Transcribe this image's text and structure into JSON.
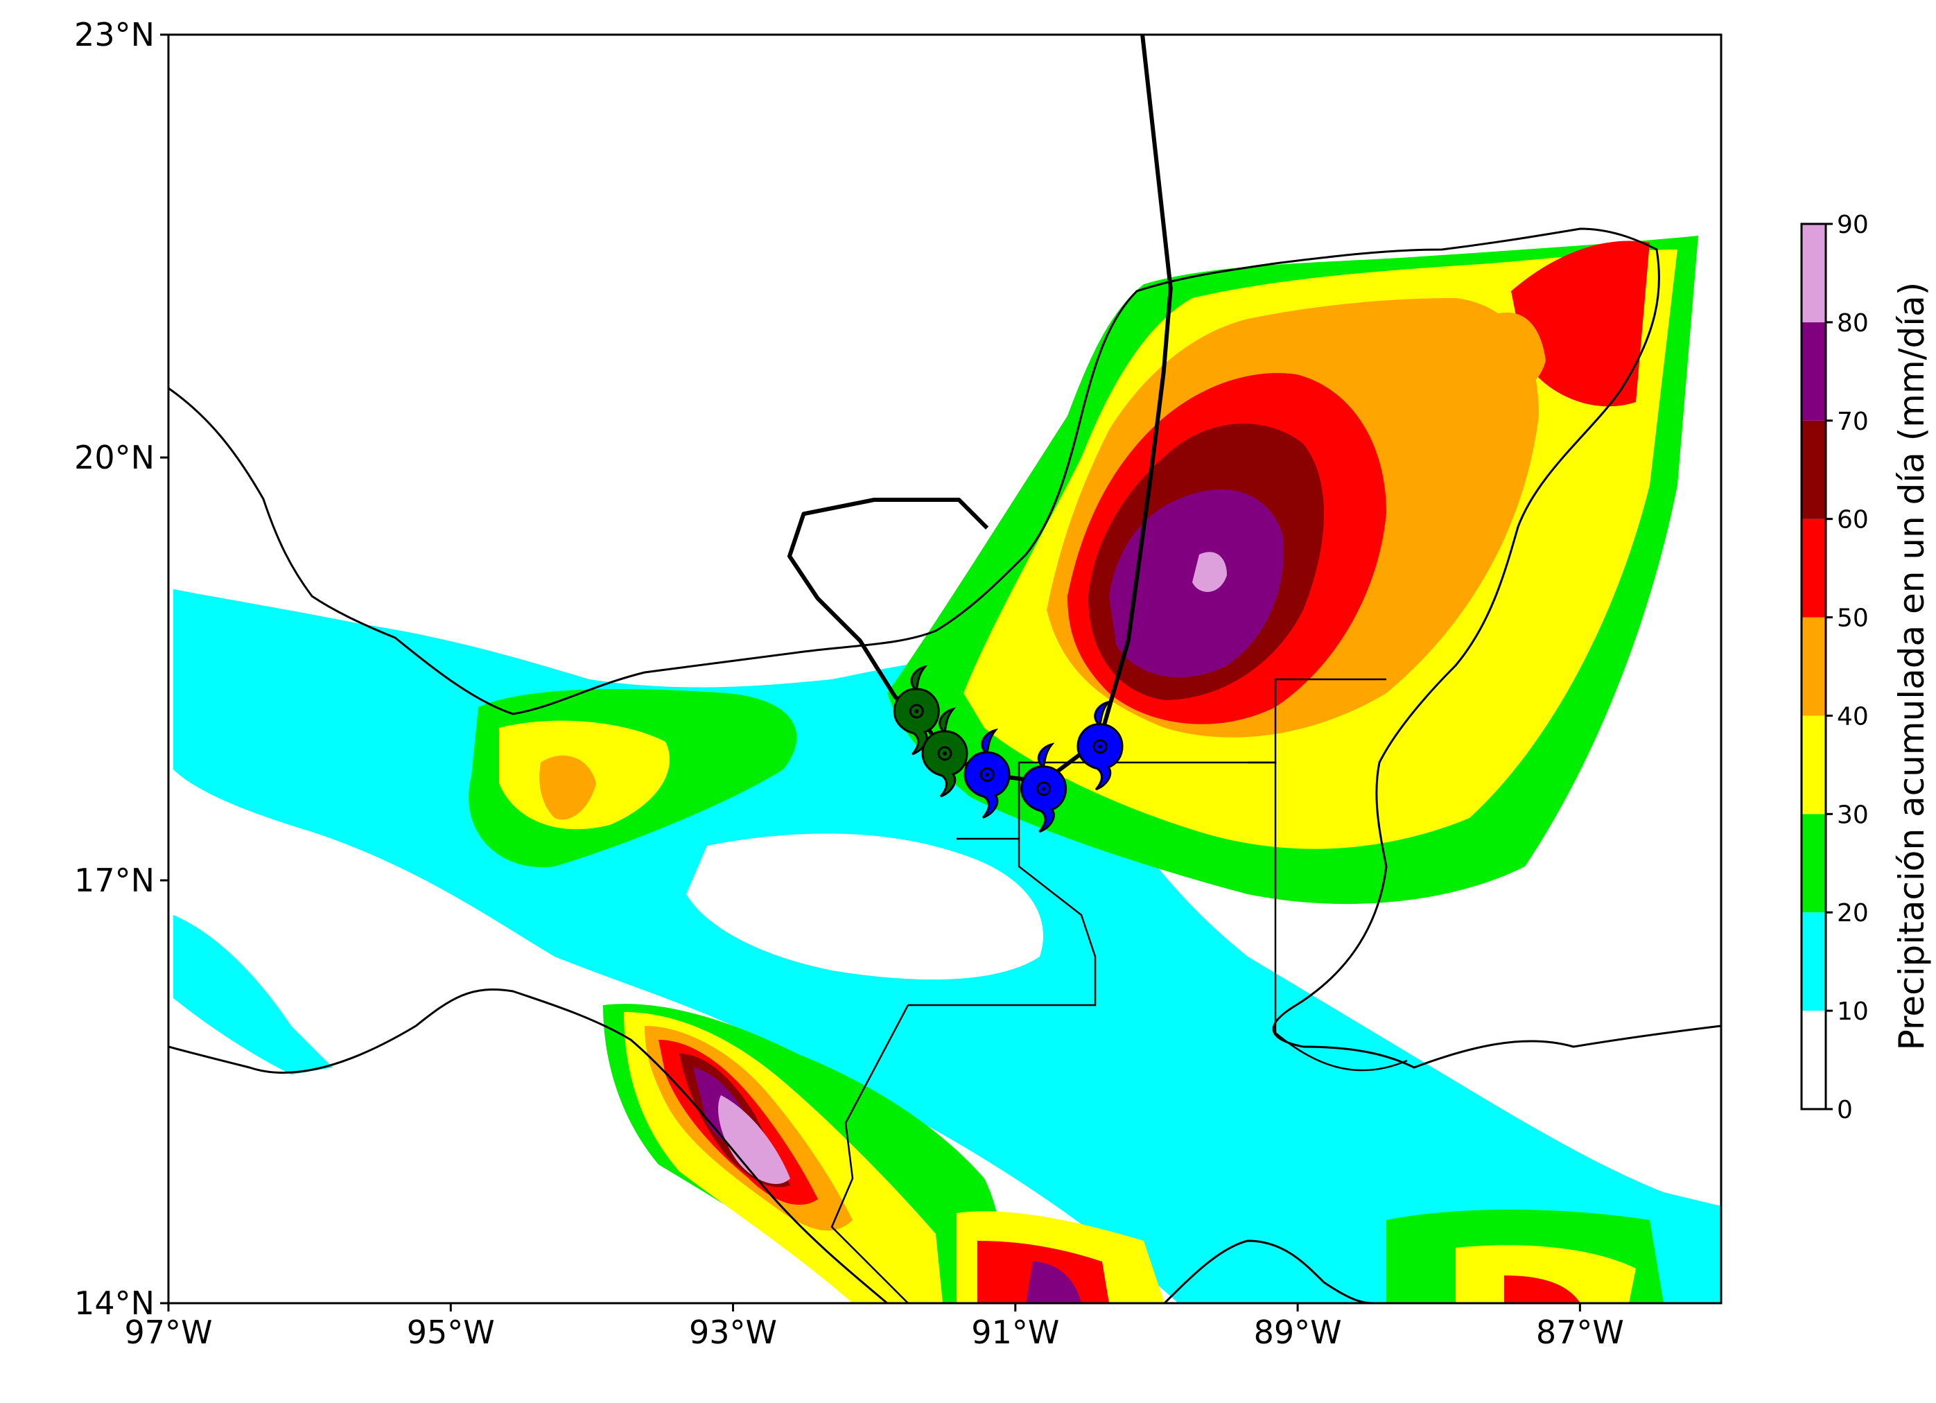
{
  "map": {
    "extent": {
      "lon": [
        -97,
        -86
      ],
      "lat": [
        14,
        23
      ]
    },
    "lon_ticks": [
      {
        "value": -97,
        "label": "97°W"
      },
      {
        "value": -95,
        "label": "95°W"
      },
      {
        "value": -93,
        "label": "93°W"
      },
      {
        "value": -91,
        "label": "91°W"
      },
      {
        "value": -89,
        "label": "89°W"
      },
      {
        "value": -87,
        "label": "87°W"
      }
    ],
    "lat_ticks": [
      {
        "value": 14,
        "label": "14°N"
      },
      {
        "value": 17,
        "label": "17°N"
      },
      {
        "value": 20,
        "label": "20°N"
      },
      {
        "value": 23,
        "label": "23°N"
      }
    ]
  },
  "colorbar": {
    "title": "Precipitación acumulada en un día (mm/día)",
    "bins": [
      {
        "from": 0,
        "to": 10,
        "color": "#ffffff"
      },
      {
        "from": 10,
        "to": 20,
        "color": "#00ffff"
      },
      {
        "from": 20,
        "to": 30,
        "color": "#00ee00"
      },
      {
        "from": 30,
        "to": 40,
        "color": "#ffff00"
      },
      {
        "from": 40,
        "to": 50,
        "color": "#ffa500"
      },
      {
        "from": 50,
        "to": 60,
        "color": "#ff0000"
      },
      {
        "from": 60,
        "to": 70,
        "color": "#8b0000"
      },
      {
        "from": 70,
        "to": 80,
        "color": "#800080"
      },
      {
        "from": 80,
        "to": 90,
        "color": "#dda0dd"
      }
    ],
    "ticks": [
      "0",
      "10",
      "20",
      "30",
      "40",
      "50",
      "60",
      "70",
      "80",
      "90"
    ]
  },
  "storm": {
    "track": [
      [
        -90.1,
        23.0
      ],
      [
        -89.9,
        21.2
      ],
      [
        -89.95,
        20.6
      ],
      [
        -90.05,
        19.8
      ],
      [
        -90.2,
        18.7
      ],
      [
        -90.4,
        18.0
      ],
      [
        -90.6,
        17.85
      ],
      [
        -90.8,
        17.7
      ],
      [
        -91.2,
        17.75
      ],
      [
        -91.5,
        17.9
      ],
      [
        -91.7,
        18.2
      ],
      [
        -91.85,
        18.3
      ],
      [
        -92.1,
        18.7
      ],
      [
        -92.4,
        19.0
      ],
      [
        -92.6,
        19.3
      ],
      [
        -92.5,
        19.6
      ],
      [
        -92.0,
        19.7
      ],
      [
        -91.4,
        19.7
      ],
      [
        -91.2,
        19.5
      ]
    ],
    "markers": [
      {
        "lon": -91.7,
        "lat": 18.2,
        "color": "#006400"
      },
      {
        "lon": -91.5,
        "lat": 17.9,
        "color": "#006400"
      },
      {
        "lon": -91.2,
        "lat": 17.75,
        "color": "#0000ff"
      },
      {
        "lon": -90.8,
        "lat": 17.65,
        "color": "#0000ff"
      },
      {
        "lon": -90.4,
        "lat": 17.95,
        "color": "#0000ff"
      }
    ]
  }
}
